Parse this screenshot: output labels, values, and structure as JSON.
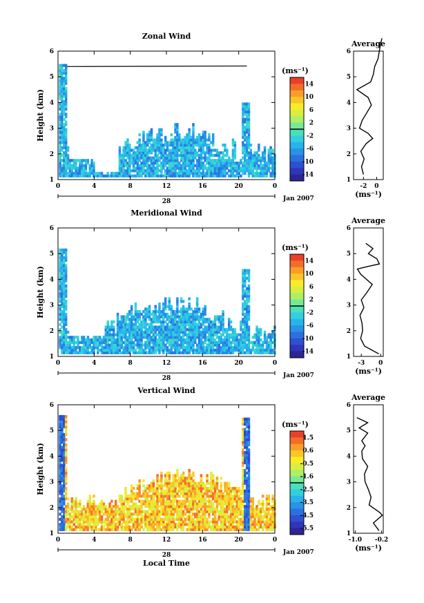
{
  "figure": {
    "date_label": "Jan 2007",
    "day_label": "28",
    "x_title": "Local Time",
    "y_title": "Height (km)",
    "unit": "(ms⁻¹)",
    "avg_title": "Average"
  },
  "chart_data": [
    {
      "type": "heatmap",
      "title": "Zonal Wind",
      "xlabel": "",
      "ylabel": "Height (km)",
      "xlim": [
        0,
        24
      ],
      "ylim": [
        1,
        6
      ],
      "x_ticks": [
        "0",
        "4",
        "8",
        "12",
        "16",
        "20",
        "0"
      ],
      "y_ticks": [
        "1",
        "2",
        "3",
        "4",
        "5",
        "6"
      ],
      "colorbar": {
        "label": "(ms⁻¹)",
        "ticks": [
          "14",
          "10",
          "6",
          "2",
          "-2",
          "-6",
          "-10",
          "-14"
        ],
        "range": [
          -14,
          14
        ]
      },
      "average": {
        "title": "Average",
        "xlabel": "(ms⁻¹)",
        "x_ticks": [
          "-2",
          "0"
        ],
        "xlim": [
          -3.5,
          1
        ],
        "heights": [
          1.2,
          1.5,
          1.8,
          2.1,
          2.4,
          2.6,
          2.8,
          3.0,
          3.3,
          3.6,
          3.9,
          4.2,
          4.5,
          4.8,
          5.1,
          5.4,
          5.7,
          6.0,
          6.3,
          6.5
        ],
        "values": [
          -2.0,
          -2.3,
          -1.9,
          -2.4,
          -1.6,
          -0.6,
          -1.3,
          -2.6,
          -2.2,
          -1.5,
          -0.8,
          -1.3,
          -3.0,
          -0.9,
          -0.5,
          -0.3,
          0.2,
          0.4,
          0.6,
          0.8
        ]
      }
    },
    {
      "type": "heatmap",
      "title": "Meridional Wind",
      "xlabel": "",
      "ylabel": "Height (km)",
      "xlim": [
        0,
        24
      ],
      "ylim": [
        1,
        6
      ],
      "x_ticks": [
        "0",
        "4",
        "8",
        "12",
        "16",
        "20",
        "0"
      ],
      "y_ticks": [
        "1",
        "2",
        "3",
        "4",
        "5",
        "6"
      ],
      "colorbar": {
        "label": "(ms⁻¹)",
        "ticks": [
          "14",
          "10",
          "6",
          "2",
          "-2",
          "-6",
          "-10",
          "-14"
        ],
        "range": [
          -14,
          14
        ]
      },
      "average": {
        "title": "Average",
        "xlabel": "(ms⁻¹)",
        "x_ticks": [
          "-3",
          "0"
        ],
        "xlim": [
          -4.2,
          0.4
        ],
        "heights": [
          1.1,
          1.4,
          1.7,
          2.0,
          2.3,
          2.6,
          2.9,
          3.2,
          3.5,
          3.8,
          4.0,
          4.2,
          4.4,
          4.5,
          4.6,
          4.8,
          5.0,
          5.2,
          5.4
        ],
        "values": [
          -0.3,
          -2.5,
          -3.1,
          -2.8,
          -2.9,
          -3.2,
          -2.6,
          -3.0,
          -2.1,
          -1.3,
          -2.2,
          -3.1,
          -3.6,
          -2.0,
          -0.2,
          -0.6,
          -1.9,
          -1.2,
          -2.3
        ]
      }
    },
    {
      "type": "heatmap",
      "title": "Vertical Wind",
      "xlabel": "Local Time",
      "ylabel": "Height (km)",
      "xlim": [
        0,
        24
      ],
      "ylim": [
        1,
        6
      ],
      "x_ticks": [
        "0",
        "4",
        "8",
        "12",
        "16",
        "20",
        "0"
      ],
      "y_ticks": [
        "1",
        "2",
        "3",
        "4",
        "5",
        "6"
      ],
      "colorbar": {
        "label": "(ms⁻¹)",
        "ticks": [
          "1.5",
          "0.6",
          "-0.5",
          "-1.6",
          "-2.5",
          "-3.5",
          "-4.5",
          "-5.5"
        ],
        "range": [
          -6.0,
          2.0
        ]
      },
      "average": {
        "title": "Average",
        "xlabel": "(ms⁻¹)",
        "x_ticks": [
          "-1.0",
          "-0.2"
        ],
        "xlim": [
          -1.05,
          -0.15
        ],
        "heights": [
          1.1,
          1.4,
          1.7,
          1.8,
          2.1,
          2.4,
          2.7,
          3.0,
          3.3,
          3.6,
          3.9,
          4.2,
          4.4,
          4.6,
          4.9,
          5.1,
          5.3,
          5.5
        ],
        "values": [
          -0.28,
          -0.45,
          -0.18,
          -0.25,
          -0.58,
          -0.52,
          -0.6,
          -0.7,
          -0.72,
          -0.62,
          -0.78,
          -0.8,
          -0.7,
          -0.8,
          -0.62,
          -0.88,
          -0.62,
          -0.95
        ]
      }
    }
  ]
}
